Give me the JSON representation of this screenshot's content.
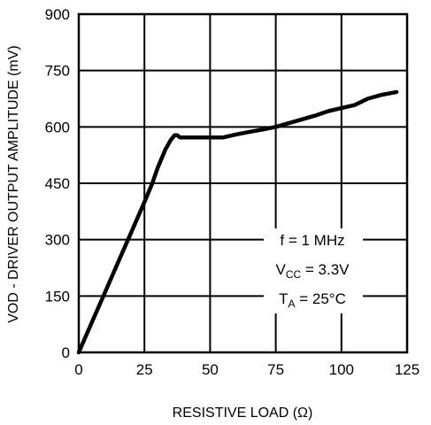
{
  "chart_data": {
    "type": "line",
    "title": "",
    "xlabel": "RESISTIVE LOAD (Ω)",
    "ylabel": "VOD - DRIVER OUTPUT AMPLITUDE  (mV)",
    "xlim": [
      0,
      125
    ],
    "ylim": [
      0,
      900
    ],
    "x_ticks": [
      "0",
      "25",
      "50",
      "75",
      "100",
      "125"
    ],
    "y_ticks": [
      "0",
      "150",
      "300",
      "450",
      "600",
      "750",
      "900"
    ],
    "grid": true,
    "series": [
      {
        "x": [
          0,
          5,
          10,
          15,
          20,
          25,
          28,
          30,
          33,
          35,
          36.5,
          37.5,
          38.5,
          40,
          45,
          50,
          55,
          60,
          65,
          70,
          75,
          80,
          85,
          90,
          95,
          100,
          105,
          110,
          115,
          121
        ],
        "y": [
          0,
          80,
          160,
          240,
          320,
          400,
          450,
          490,
          540,
          565,
          578,
          578,
          572,
          572,
          572,
          572,
          572,
          580,
          587,
          593,
          600,
          610,
          620,
          630,
          642,
          650,
          658,
          675,
          685,
          693
        ],
        "color": "#000000"
      }
    ],
    "annotations": {
      "freq": "f = 1 MHz",
      "vcc_main": "V",
      "vcc_sub": "CC",
      "vcc_value": " = 3.3V",
      "ta_main": "T",
      "ta_sub": "A",
      "ta_value": " = 25°C"
    }
  }
}
